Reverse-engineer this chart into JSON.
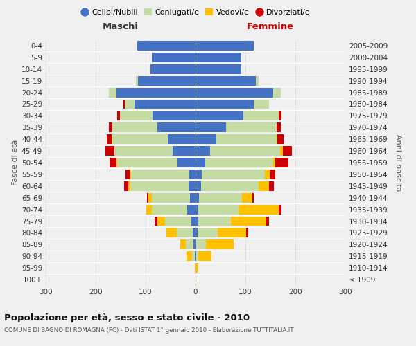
{
  "age_groups": [
    "100+",
    "95-99",
    "90-94",
    "85-89",
    "80-84",
    "75-79",
    "70-74",
    "65-69",
    "60-64",
    "55-59",
    "50-54",
    "45-49",
    "40-44",
    "35-39",
    "30-34",
    "25-29",
    "20-24",
    "15-19",
    "10-14",
    "5-9",
    "0-4"
  ],
  "birth_years": [
    "≤ 1909",
    "1910-1914",
    "1915-1919",
    "1920-1924",
    "1925-1929",
    "1930-1934",
    "1935-1939",
    "1940-1944",
    "1945-1949",
    "1950-1954",
    "1955-1959",
    "1960-1964",
    "1965-1969",
    "1970-1974",
    "1975-1979",
    "1980-1984",
    "1985-1989",
    "1990-1994",
    "1995-1999",
    "2000-2004",
    "2005-2009"
  ],
  "maschi": {
    "celibi": [
      0,
      0,
      2,
      4,
      6,
      9,
      16,
      11,
      14,
      13,
      36,
      46,
      56,
      76,
      86,
      122,
      158,
      115,
      90,
      88,
      116
    ],
    "coniugati": [
      0,
      0,
      5,
      16,
      32,
      52,
      72,
      76,
      116,
      116,
      121,
      116,
      111,
      90,
      66,
      20,
      15,
      5,
      0,
      0,
      0
    ],
    "vedovi": [
      0,
      2,
      11,
      11,
      21,
      16,
      10,
      8,
      5,
      3,
      2,
      1,
      1,
      0,
      0,
      0,
      0,
      0,
      0,
      0,
      0
    ],
    "divorziati": [
      0,
      0,
      0,
      0,
      0,
      5,
      0,
      2,
      8,
      8,
      13,
      18,
      10,
      8,
      5,
      2,
      0,
      0,
      0,
      0,
      0
    ]
  },
  "femmine": {
    "nubili": [
      0,
      0,
      2,
      2,
      4,
      5,
      5,
      7,
      11,
      13,
      19,
      29,
      41,
      61,
      96,
      116,
      156,
      121,
      91,
      91,
      116
    ],
    "coniugate": [
      0,
      0,
      4,
      19,
      41,
      66,
      81,
      86,
      116,
      126,
      136,
      141,
      121,
      101,
      71,
      31,
      15,
      5,
      0,
      0,
      0
    ],
    "vedove": [
      2,
      5,
      26,
      56,
      56,
      71,
      81,
      21,
      20,
      10,
      5,
      5,
      2,
      1,
      0,
      0,
      0,
      0,
      0,
      0,
      0
    ],
    "divorziate": [
      0,
      0,
      0,
      0,
      5,
      5,
      5,
      2,
      10,
      11,
      26,
      18,
      12,
      8,
      5,
      0,
      0,
      0,
      0,
      0,
      0
    ]
  },
  "colors": {
    "celibi": "#4472c4",
    "coniugati": "#c5dba4",
    "vedovi": "#ffc000",
    "divorziati": "#cc0000"
  },
  "xlim": 300,
  "title": "Popolazione per età, sesso e stato civile - 2010",
  "subtitle": "COMUNE DI BAGNO DI ROMAGNA (FC) - Dati ISTAT 1° gennaio 2010 - Elaborazione TUTTITALIA.IT",
  "ylabel_left": "Fasce di età",
  "ylabel_right": "Anni di nascita",
  "header_left": "Maschi",
  "header_right": "Femmine",
  "legend_labels": [
    "Celibi/Nubili",
    "Coniugati/e",
    "Vedovi/e",
    "Divorziati/e"
  ],
  "bg_color": "#f0f0f0"
}
